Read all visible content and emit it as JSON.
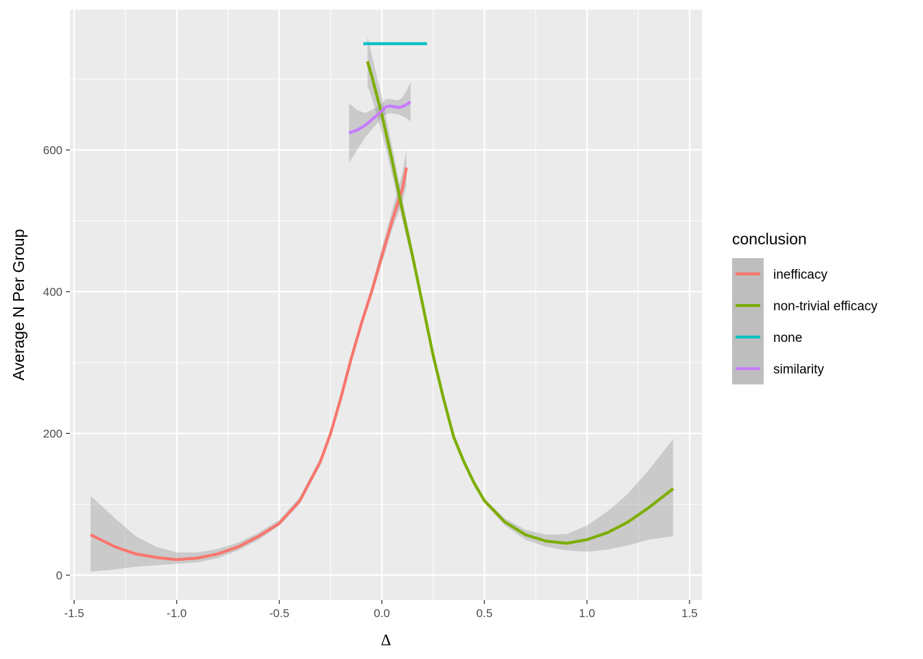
{
  "chart_data": {
    "type": "line",
    "xlabel": "Δ",
    "ylabel": "Average N Per Group",
    "xlim": [
      -1.52,
      1.56
    ],
    "ylim": [
      -35,
      798
    ],
    "x_ticks": [
      -1.5,
      -1.0,
      -0.5,
      0.0,
      0.5,
      1.0,
      1.5
    ],
    "x_tick_labels": [
      "-1.5",
      "-1.0",
      "-0.5",
      "0.0",
      "0.5",
      "1.0",
      "1.5"
    ],
    "y_ticks": [
      0,
      200,
      400,
      600
    ],
    "y_tick_labels": [
      "0",
      "200",
      "400",
      "600"
    ],
    "grid": true,
    "legend": {
      "title": "conclusion",
      "position": "right"
    },
    "series": [
      {
        "name": "inefficacy",
        "color": "#F8766D",
        "x": [
          -1.42,
          -1.3,
          -1.2,
          -1.1,
          -1.0,
          -0.9,
          -0.8,
          -0.7,
          -0.6,
          -0.5,
          -0.4,
          -0.3,
          -0.25,
          -0.2,
          -0.15,
          -0.1,
          -0.05,
          0.0,
          0.05,
          0.1,
          0.12
        ],
        "y": [
          57,
          40,
          30,
          25,
          22,
          24,
          30,
          40,
          55,
          73,
          105,
          160,
          200,
          250,
          305,
          355,
          400,
          450,
          500,
          545,
          575
        ],
        "lower": [
          5,
          8,
          12,
          14,
          16,
          18,
          24,
          35,
          50,
          70,
          100,
          155,
          195,
          245,
          300,
          350,
          395,
          440,
          488,
          525,
          550
        ],
        "upper": [
          112,
          80,
          55,
          40,
          32,
          32,
          37,
          46,
          60,
          78,
          110,
          165,
          205,
          255,
          310,
          362,
          407,
          462,
          515,
          568,
          600
        ]
      },
      {
        "name": "non-trivial efficacy",
        "color": "#7CAE00",
        "x": [
          -0.07,
          -0.05,
          0.0,
          0.05,
          0.1,
          0.15,
          0.2,
          0.25,
          0.3,
          0.35,
          0.4,
          0.45,
          0.5,
          0.6,
          0.7,
          0.8,
          0.9,
          1.0,
          1.1,
          1.2,
          1.3,
          1.42
        ],
        "y": [
          725,
          705,
          650,
          585,
          515,
          450,
          380,
          310,
          250,
          195,
          160,
          130,
          105,
          75,
          57,
          48,
          45,
          50,
          60,
          75,
          95,
          122
        ],
        "lower": [
          690,
          675,
          625,
          565,
          500,
          440,
          372,
          302,
          243,
          190,
          155,
          126,
          102,
          70,
          50,
          40,
          35,
          33,
          36,
          42,
          50,
          55
        ],
        "upper": [
          760,
          735,
          675,
          605,
          530,
          460,
          388,
          318,
          257,
          200,
          165,
          134,
          108,
          80,
          64,
          57,
          58,
          70,
          90,
          115,
          148,
          192
        ]
      },
      {
        "name": "none",
        "color": "#00BFC4",
        "x": [
          -0.09,
          0.22
        ],
        "y": [
          750,
          750
        ]
      },
      {
        "name": "similarity",
        "color": "#C77CFF",
        "x": [
          -0.16,
          -0.12,
          -0.08,
          -0.04,
          0.0,
          0.02,
          0.04,
          0.06,
          0.08,
          0.1,
          0.12,
          0.14
        ],
        "y": [
          624,
          628,
          635,
          645,
          655,
          661,
          662,
          661,
          660,
          661,
          664,
          668
        ],
        "lower": [
          582,
          600,
          618,
          632,
          645,
          650,
          652,
          651,
          650,
          648,
          645,
          640
        ],
        "upper": [
          666,
          656,
          652,
          658,
          665,
          672,
          672,
          671,
          670,
          674,
          683,
          696
        ]
      }
    ]
  }
}
